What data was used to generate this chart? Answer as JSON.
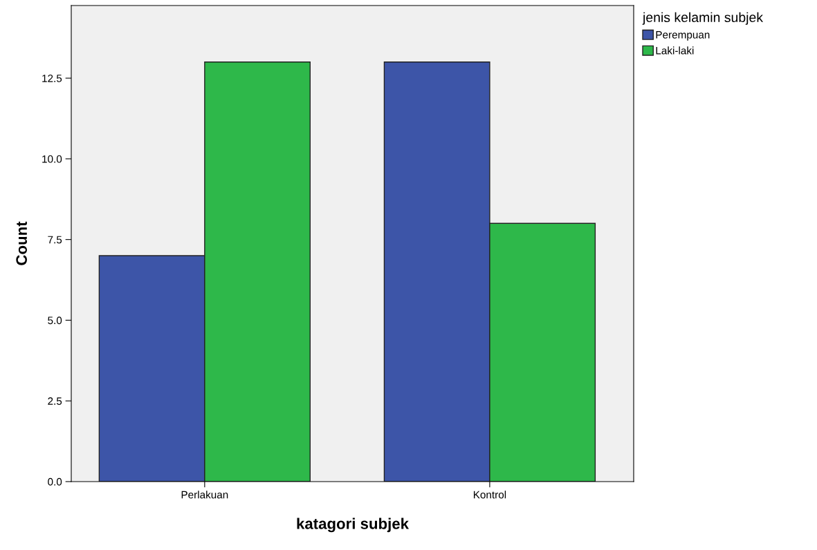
{
  "chart_data": {
    "type": "bar",
    "xlabel": "katagori subjek",
    "ylabel": "Count",
    "legend_title": "jenis kelamin subjek",
    "categories": [
      "Perlakuan",
      "Kontrol"
    ],
    "series": [
      {
        "name": "Perempuan",
        "color": "#3d55a8",
        "values": [
          7,
          13
        ]
      },
      {
        "name": "Laki-laki",
        "color": "#2eb84a",
        "values": [
          13,
          8
        ]
      }
    ],
    "ylim": [
      0,
      14.75
    ],
    "yticks": [
      {
        "value": 0,
        "label": "0.0"
      },
      {
        "value": 2.5,
        "label": "2.5"
      },
      {
        "value": 5,
        "label": "5.0"
      },
      {
        "value": 7.5,
        "label": "7.5"
      },
      {
        "value": 10,
        "label": "10.0"
      },
      {
        "value": 12.5,
        "label": "12.5"
      }
    ],
    "grid": false,
    "legend": "right"
  }
}
